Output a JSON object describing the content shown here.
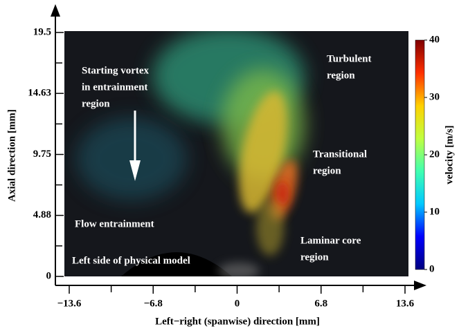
{
  "chart_data": {
    "type": "vector-field",
    "xlabel": "Left−right (spanwise) direction [mm]",
    "ylabel": "Axial direction [mm]",
    "xlim": [
      -13.6,
      13.6
    ],
    "ylim": [
      0,
      19.5
    ],
    "xticks": [
      {
        "value": -13.6,
        "label": "−13.6"
      },
      {
        "value": -6.8,
        "label": "−6.8"
      },
      0,
      6.8,
      13.6
    ],
    "yticks": [
      0,
      4.88,
      9.75,
      14.63,
      19.5
    ],
    "xminor": [
      -10.2,
      -3.4,
      3.4,
      10.2
    ],
    "yminor": [
      2.44,
      7.315,
      12.19,
      17.065
    ],
    "colorbar": {
      "label": "velocity [m/s]",
      "lim": [
        0,
        40
      ],
      "ticks": [
        0,
        10,
        20,
        30,
        40
      ],
      "colormap": [
        "#00007f",
        "#0000ff",
        "#00c8ff",
        "#40ffb0",
        "#c0ff40",
        "#ffd000",
        "#ff3000",
        "#800000"
      ]
    },
    "annotations": [
      {
        "lines": [
          "Starting vortex",
          "in entrainment",
          "region"
        ]
      },
      {
        "lines": [
          "Turbulent",
          "region"
        ]
      },
      {
        "lines": [
          "Transitional",
          "region"
        ]
      },
      {
        "lines": [
          "Flow entrainment"
        ]
      },
      {
        "lines": [
          "Laminar core",
          "region"
        ]
      },
      {
        "lines": [
          "Left side of physical model"
        ]
      }
    ]
  }
}
